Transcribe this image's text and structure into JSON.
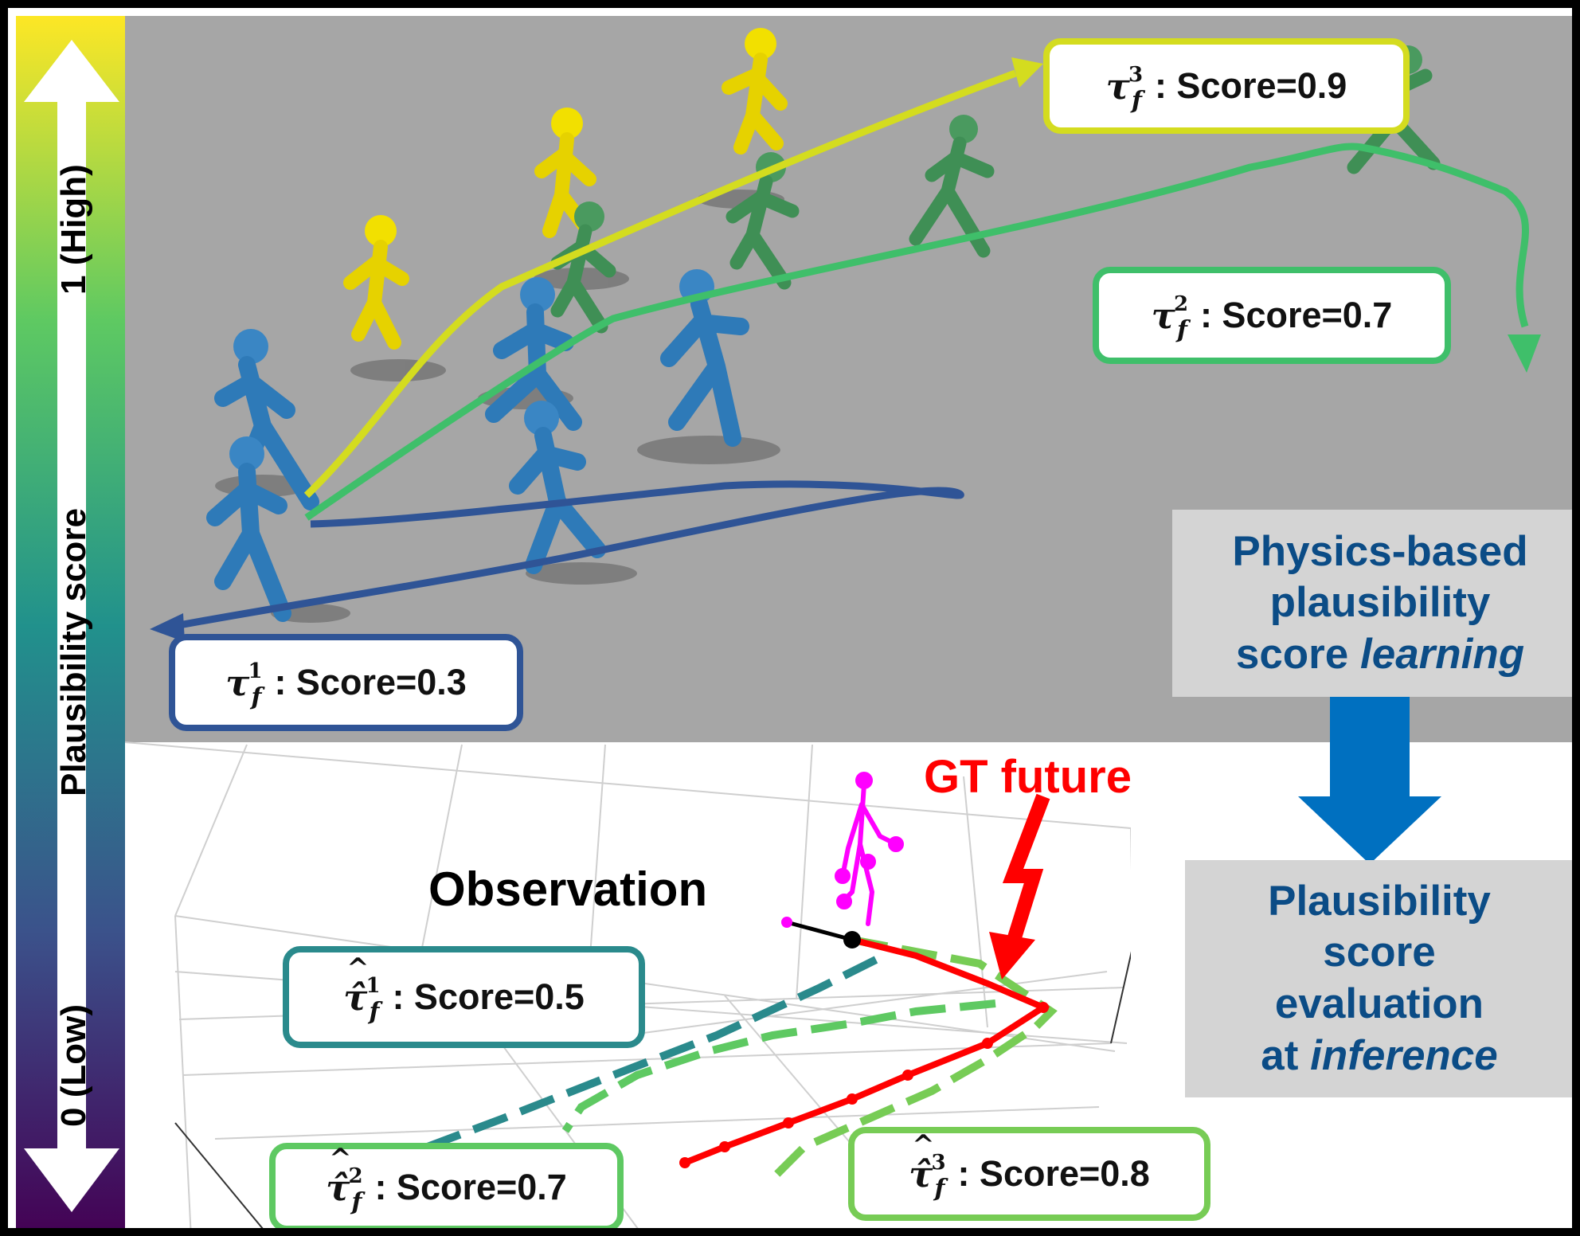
{
  "colorbar": {
    "label": "Plausibility score",
    "high_label": "1 (High)",
    "low_label": "0 (Low)",
    "colors": [
      "#fde725",
      "#5ec962",
      "#21918c",
      "#3b528b",
      "#440154"
    ]
  },
  "top_panel": {
    "background": "#a6a6a6",
    "trajectories": [
      {
        "symbol": "τ",
        "sup": "1",
        "sub": "f",
        "score_text": ": Score=0.3",
        "color": "#2f5496"
      },
      {
        "symbol": "τ",
        "sup": "2",
        "sub": "f",
        "score_text": ": Score=0.7",
        "color": "#3fbf6a"
      },
      {
        "symbol": "τ",
        "sup": "3",
        "sub": "f",
        "score_text": ": Score=0.9",
        "color": "#d4dc1f"
      }
    ]
  },
  "bottom_panel": {
    "observation_label": "Observation",
    "gt_label": "GT future",
    "gt_color": "#ff0000",
    "observation_color": "#ff00ff",
    "predictions": [
      {
        "symbol": "τ̂",
        "sup": "1",
        "sub": "f",
        "score_text": ": Score=0.5",
        "color": "#2a8a8c"
      },
      {
        "symbol": "τ̂",
        "sup": "2",
        "sub": "f",
        "score_text": ": Score=0.7",
        "color": "#5ec962"
      },
      {
        "symbol": "τ̂",
        "sup": "3",
        "sub": "f",
        "score_text": " : Score=0.8",
        "color": "#77cc55"
      }
    ]
  },
  "process": {
    "learning_lines": [
      "Physics-based",
      "plausibility",
      "score "
    ],
    "learning_emph": "learning",
    "inference_lines": [
      "Plausibility",
      "score",
      "evaluation",
      "at "
    ],
    "inference_emph": "inference",
    "arrow_color": "#0070c0"
  }
}
